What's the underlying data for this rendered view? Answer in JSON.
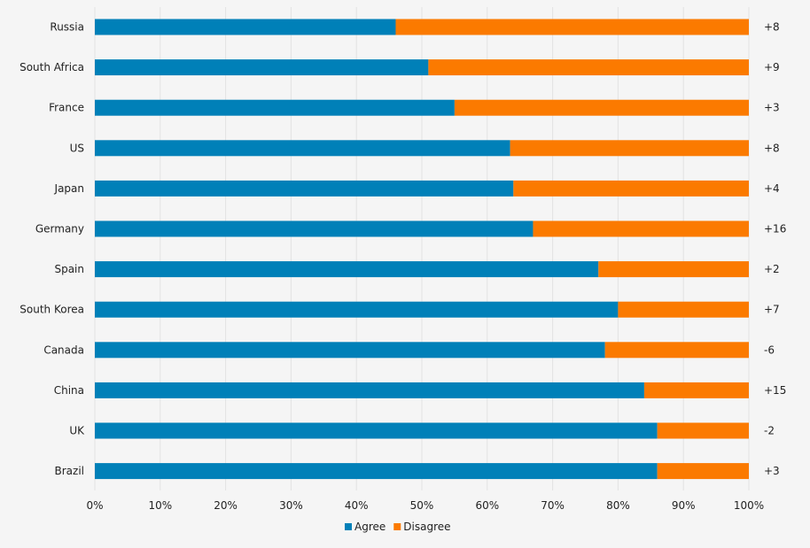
{
  "chart_data": {
    "type": "bar",
    "orientation": "horizontal",
    "stacked": true,
    "categories": [
      "Russia",
      "South Africa",
      "France",
      "US",
      "Japan",
      "Germany",
      "Spain",
      "South Korea",
      "Canada",
      "China",
      "UK",
      "Brazil"
    ],
    "series": [
      {
        "name": "Agree",
        "color": "#0080b8",
        "values": [
          46,
          51,
          55,
          63.5,
          64,
          67,
          77,
          80,
          78,
          84,
          86,
          86
        ]
      },
      {
        "name": "Disagree",
        "color": "#fb7a00",
        "values": [
          54,
          49,
          45,
          36.5,
          36,
          33,
          23,
          20,
          22,
          16,
          14,
          14
        ]
      }
    ],
    "annotations": [
      "+8",
      "+9",
      "+3",
      "+8",
      "+4",
      "+16",
      "+2",
      "+7",
      "-6",
      "+15",
      "-2",
      "+3"
    ],
    "xlim": [
      0,
      100
    ],
    "xticks": [
      "0%",
      "10%",
      "20%",
      "30%",
      "40%",
      "50%",
      "60%",
      "70%",
      "80%",
      "90%",
      "100%"
    ],
    "grid": true,
    "legend_position": "bottom-center"
  }
}
